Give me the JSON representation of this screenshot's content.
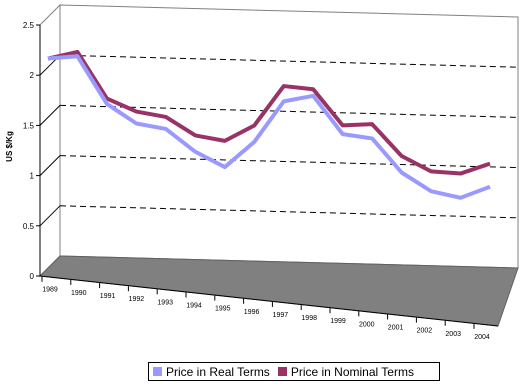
{
  "chart_data": {
    "type": "line",
    "subtype": "3d-line",
    "ylabel": "US $/Kg",
    "xlabel": "",
    "title": "",
    "x": [
      "1989",
      "1990",
      "1991",
      "1992",
      "1993",
      "1994",
      "1995",
      "1996",
      "1997",
      "1998",
      "1999",
      "2000",
      "2001",
      "2002",
      "2003",
      "2004"
    ],
    "y_ticks": [
      "0",
      "0.5",
      "1",
      "1.5",
      "2",
      "2.5"
    ],
    "ylim": [
      0,
      2.5
    ],
    "grid": true,
    "legend_position": "bottom",
    "series": [
      {
        "name": "Price in Real Terms",
        "color": "#9999ff",
        "values": [
          1.96,
          2.0,
          1.58,
          1.42,
          1.39,
          1.2,
          1.08,
          1.33,
          1.72,
          1.79,
          1.46,
          1.44,
          1.15,
          1.0,
          0.96,
          1.08
        ]
      },
      {
        "name": "Price in Nominal Terms",
        "color": "#993366",
        "values": [
          1.96,
          2.04,
          1.63,
          1.53,
          1.5,
          1.35,
          1.32,
          1.48,
          1.86,
          1.85,
          1.54,
          1.57,
          1.3,
          1.18,
          1.18,
          1.29
        ]
      }
    ]
  }
}
